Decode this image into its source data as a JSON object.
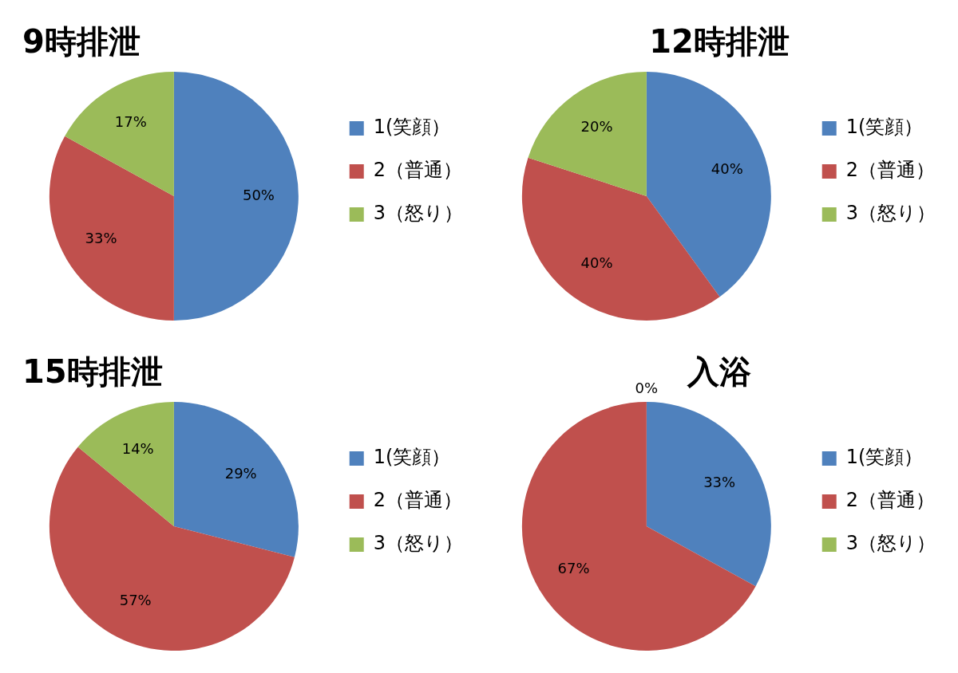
{
  "chart_data": [
    {
      "type": "pie",
      "title": "9時排泄",
      "categories": [
        "1(笑顔）",
        "2（普通）",
        "3（怒り）"
      ],
      "values": [
        50,
        33,
        17
      ],
      "colors": [
        "#4f81bd",
        "#c0504d",
        "#9bbb59"
      ],
      "value_labels": [
        "50%",
        "33%",
        "17%"
      ],
      "legend": "right"
    },
    {
      "type": "pie",
      "title": "12時排泄",
      "categories": [
        "1(笑顔）",
        "2（普通）",
        "3（怒り）"
      ],
      "values": [
        40,
        40,
        20
      ],
      "colors": [
        "#4f81bd",
        "#c0504d",
        "#9bbb59"
      ],
      "value_labels": [
        "40%",
        "40%",
        "20%"
      ],
      "legend": "right"
    },
    {
      "type": "pie",
      "title": "15時排泄",
      "categories": [
        "1(笑顔）",
        "2（普通）",
        "3（怒り）"
      ],
      "values": [
        29,
        57,
        14
      ],
      "colors": [
        "#4f81bd",
        "#c0504d",
        "#9bbb59"
      ],
      "value_labels": [
        "29%",
        "57%",
        "14%"
      ],
      "legend": "right"
    },
    {
      "type": "pie",
      "title": "入浴",
      "categories": [
        "1(笑顔）",
        "2（普通）",
        "3（怒り）"
      ],
      "values": [
        33,
        67,
        0
      ],
      "colors": [
        "#4f81bd",
        "#c0504d",
        "#9bbb59"
      ],
      "value_labels": [
        "33%",
        "67%",
        "0%"
      ],
      "legend": "right"
    }
  ]
}
